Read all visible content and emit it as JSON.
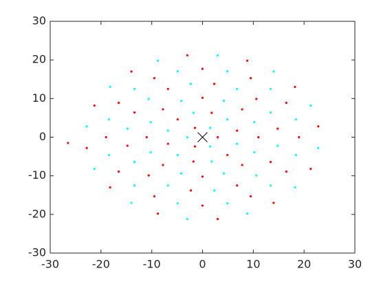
{
  "chart_data": {
    "type": "scatter",
    "xlim": [
      -30,
      30
    ],
    "ylim": [
      -30,
      30
    ],
    "xticks": [
      -30,
      -20,
      -10,
      0,
      10,
      20,
      30
    ],
    "yticks": [
      -30,
      -20,
      -10,
      0,
      10,
      20,
      30
    ],
    "grid": false,
    "series": [
      {
        "color": "#ff0000",
        "marker": "dot",
        "x": [
          3,
          -1.5,
          -1.5,
          6.8,
          1.8,
          -4.9,
          -6.8,
          -1.8,
          4.9,
          11,
          7.8,
          0,
          -7.8,
          -11,
          -7.8,
          0,
          7.8,
          14.8,
          10.6,
          2.3,
          -6.8,
          -13.4,
          -14.8,
          -10.6,
          -2.3,
          6.8,
          13.4,
          19,
          16.5,
          9.5,
          0,
          -9.5,
          -16.5,
          -19,
          -16.5,
          -9.5,
          0,
          9.5,
          16.5,
          22.8,
          18.2,
          8.8,
          -3.0,
          -14.0,
          -21.3,
          -22.8,
          -18.2,
          -8.8,
          3.0,
          14.0,
          21.3,
          -26.5
        ],
        "y": [
          0,
          2.4,
          -2.4,
          1.7,
          6.3,
          4.6,
          -1.7,
          -6.3,
          -4.6,
          0,
          7.2,
          10.2,
          7.2,
          0,
          -7.2,
          -10.2,
          -7.2,
          2.2,
          9.9,
          13.8,
          12.5,
          6.4,
          -2.2,
          -9.9,
          -13.8,
          -12.5,
          -6.4,
          0,
          8.9,
          15.3,
          17.7,
          15.3,
          8.9,
          0,
          -8.9,
          -15.3,
          -17.7,
          -15.3,
          -8.9,
          2.8,
          13.0,
          19.8,
          21.2,
          17.0,
          8.2,
          -2.8,
          -13.0,
          -19.8,
          -21.2,
          -17.0,
          -8.2,
          -1.5
        ]
      },
      {
        "color": "#00ffff",
        "marker": "dot",
        "x": [
          1.5,
          -3,
          1.5,
          4.9,
          -1.8,
          -6.8,
          -4.9,
          1.8,
          6.8,
          10.2,
          4.2,
          -4.2,
          -10.2,
          -10.2,
          -4.2,
          4.2,
          10.2,
          13.4,
          6.8,
          -2.3,
          -10.6,
          -14.8,
          -13.4,
          -6.8,
          2.3,
          10.6,
          14.8,
          18.4,
          13.4,
          4.9,
          -4.9,
          -13.4,
          -18.4,
          -18.4,
          -13.4,
          -4.9,
          4.9,
          13.4,
          18.4,
          21.3,
          14.0,
          3.0,
          -8.8,
          -18.2,
          -22.8,
          -21.3,
          -14.0,
          -3.0,
          8.8,
          18.2,
          22.8
        ],
        "y": [
          2.4,
          0,
          -2.4,
          4.6,
          6.3,
          1.7,
          -4.6,
          -6.3,
          -1.7,
          3.9,
          9.4,
          9.4,
          3.9,
          -3.9,
          -9.4,
          -9.4,
          -3.9,
          6.4,
          12.5,
          13.8,
          9.9,
          2.2,
          -6.4,
          -12.5,
          -13.8,
          -9.9,
          -2.2,
          4.6,
          12.5,
          17.1,
          17.1,
          12.5,
          4.6,
          -4.6,
          -12.5,
          -17.1,
          -17.1,
          -12.5,
          -4.6,
          8.2,
          17.0,
          21.2,
          19.8,
          13.0,
          2.8,
          -8.2,
          -17.0,
          -21.2,
          -19.8,
          -13.0,
          -2.8
        ]
      },
      {
        "color": "#000000",
        "marker": "cross",
        "x": [
          0
        ],
        "y": [
          0
        ]
      }
    ]
  }
}
